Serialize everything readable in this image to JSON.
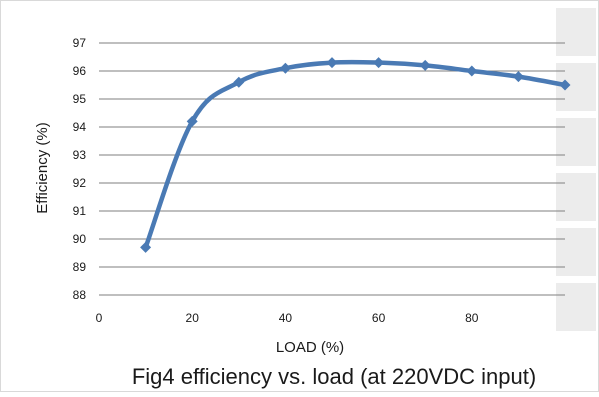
{
  "chart_data": {
    "type": "line",
    "title": "",
    "caption": "Fig4 efficiency vs. load (at 220VDC input)",
    "xlabel": "LOAD (%)",
    "ylabel": "Efficiency (%)",
    "xlim": [
      0,
      100
    ],
    "ylim": [
      88,
      97
    ],
    "xticks": [
      0,
      20,
      40,
      60,
      80
    ],
    "yticks": [
      88,
      89,
      90,
      91,
      92,
      93,
      94,
      95,
      96,
      97
    ],
    "grid": "horizontal",
    "legend": "none",
    "series": [
      {
        "x": [
          10,
          20,
          30,
          40,
          50,
          60,
          70,
          80,
          90,
          100
        ],
        "y": [
          89.7,
          94.2,
          95.6,
          96.1,
          96.3,
          96.3,
          96.2,
          96.0,
          95.8,
          95.5
        ]
      }
    ],
    "colors": {
      "line": "#4a7ab4",
      "marker": "#4a7ab4",
      "grid": "#7f7f7f",
      "border": "#d9d9d9",
      "side_panel": "#ececec"
    }
  }
}
